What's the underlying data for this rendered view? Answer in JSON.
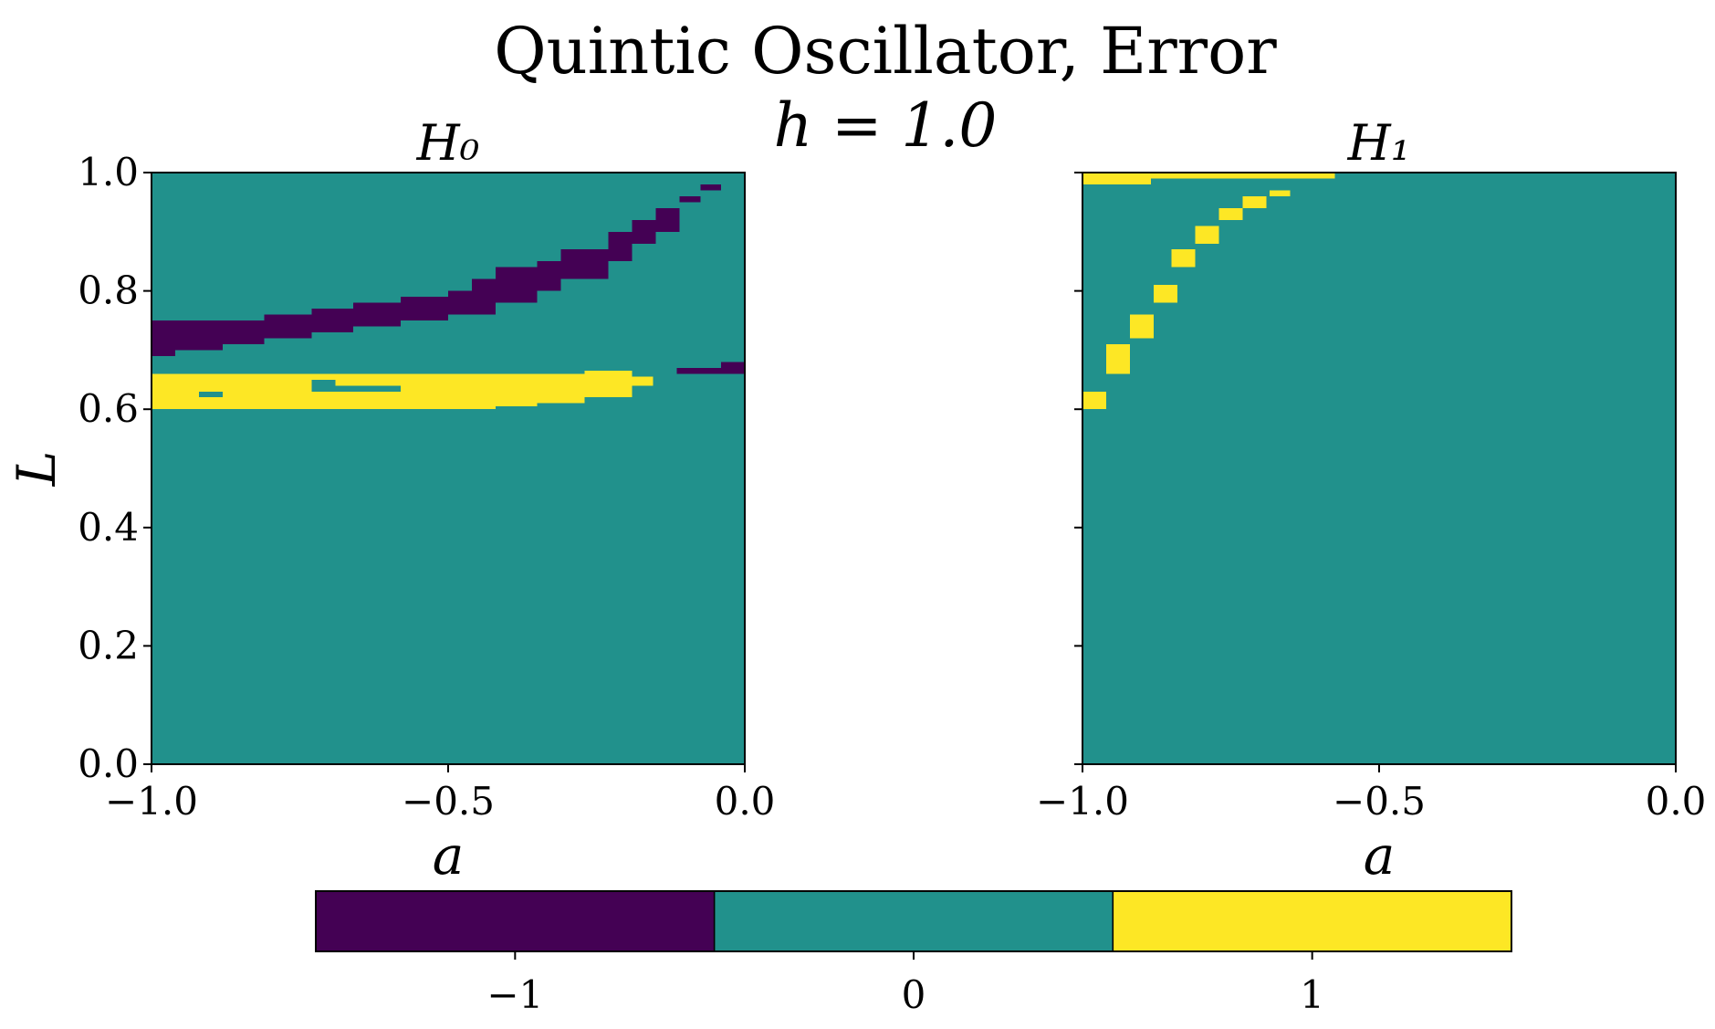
{
  "figure": {
    "title": "Quintic Oscillator, Error",
    "subtitle": "h = 1.0"
  },
  "colorbar": {
    "ticks": [
      "−1",
      "0",
      "1"
    ],
    "colors": [
      "#440154",
      "#21918c",
      "#fde725"
    ]
  },
  "chart_data": [
    {
      "type": "heatmap",
      "title": "H₀",
      "xlabel": "a",
      "ylabel": "L",
      "xlim": [
        -1.0,
        0.0
      ],
      "ylim": [
        0.0,
        1.0
      ],
      "xticks": [
        "−1.0",
        "−0.5",
        "0.0"
      ],
      "yticks": [
        "0.0",
        "0.2",
        "0.4",
        "0.6",
        "0.8",
        "1.0"
      ],
      "background_value": 0,
      "regions": [
        {
          "value": -1,
          "cells": [
            [
              -1.0,
              -0.96,
              0.69,
              0.75
            ],
            [
              -0.96,
              -0.88,
              0.7,
              0.75
            ],
            [
              -0.88,
              -0.81,
              0.71,
              0.75
            ],
            [
              -0.81,
              -0.73,
              0.72,
              0.76
            ],
            [
              -0.73,
              -0.66,
              0.73,
              0.77
            ],
            [
              -0.66,
              -0.58,
              0.74,
              0.78
            ],
            [
              -0.58,
              -0.5,
              0.75,
              0.79
            ],
            [
              -0.5,
              -0.46,
              0.76,
              0.8
            ],
            [
              -0.46,
              -0.42,
              0.76,
              0.82
            ],
            [
              -0.42,
              -0.35,
              0.78,
              0.84
            ],
            [
              -0.35,
              -0.31,
              0.8,
              0.85
            ],
            [
              -0.31,
              -0.23,
              0.82,
              0.87
            ],
            [
              -0.23,
              -0.19,
              0.85,
              0.9
            ],
            [
              -0.19,
              -0.15,
              0.88,
              0.92
            ],
            [
              -0.15,
              -0.11,
              0.9,
              0.94
            ],
            [
              -0.11,
              -0.075,
              0.95,
              0.96
            ],
            [
              -0.075,
              -0.04,
              0.97,
              0.98
            ],
            [
              -0.115,
              -0.04,
              0.66,
              0.67
            ],
            [
              -0.04,
              0.0,
              0.66,
              0.68
            ]
          ]
        },
        {
          "value": 1,
          "cells": [
            [
              -1.0,
              -0.81,
              0.6,
              0.66
            ],
            [
              -0.81,
              -0.42,
              0.6,
              0.66
            ],
            [
              -0.42,
              -0.35,
              0.605,
              0.66
            ],
            [
              -0.35,
              -0.27,
              0.61,
              0.66
            ],
            [
              -0.27,
              -0.19,
              0.62,
              0.665
            ],
            [
              -0.19,
              -0.155,
              0.64,
              0.655
            ]
          ]
        },
        {
          "value": 0,
          "cells": [
            [
              -0.92,
              -0.88,
              0.62,
              0.63
            ],
            [
              -0.73,
              -0.69,
              0.63,
              0.65
            ],
            [
              -0.69,
              -0.58,
              0.63,
              0.64
            ]
          ]
        }
      ]
    },
    {
      "type": "heatmap",
      "title": "H₁",
      "xlabel": "a",
      "ylabel": "",
      "xlim": [
        -1.0,
        0.0
      ],
      "ylim": [
        0.0,
        1.0
      ],
      "xticks": [
        "−1.0",
        "−0.5",
        "0.0"
      ],
      "yticks": [],
      "background_value": 0,
      "regions": [
        {
          "value": 1,
          "cells": [
            [
              -1.0,
              -0.885,
              0.98,
              1.0
            ],
            [
              -0.885,
              -0.575,
              0.99,
              1.0
            ],
            [
              -0.65,
              -0.685,
              0.96,
              0.97
            ],
            [
              -0.73,
              -0.69,
              0.94,
              0.96
            ],
            [
              -0.77,
              -0.73,
              0.92,
              0.94
            ],
            [
              -0.81,
              -0.77,
              0.88,
              0.91
            ],
            [
              -0.85,
              -0.81,
              0.84,
              0.87
            ],
            [
              -0.88,
              -0.84,
              0.78,
              0.81
            ],
            [
              -0.92,
              -0.88,
              0.72,
              0.76
            ],
            [
              -0.96,
              -0.92,
              0.66,
              0.71
            ],
            [
              -1.0,
              -0.96,
              0.6,
              0.63
            ]
          ]
        }
      ]
    }
  ]
}
